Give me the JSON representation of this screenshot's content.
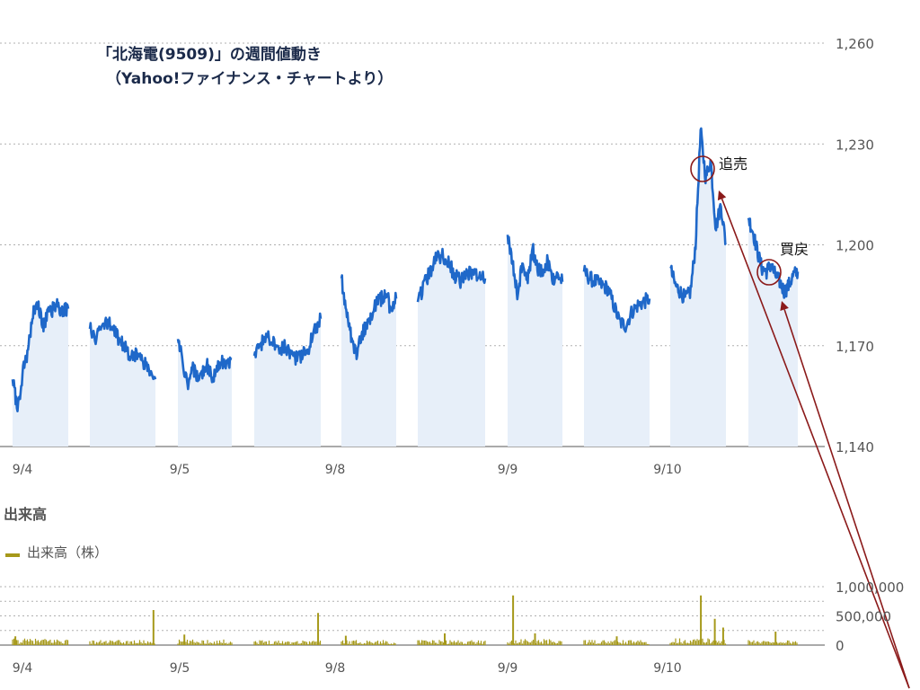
{
  "chart_data": [
    {
      "type": "line",
      "title": "「北海電(9509)」の週間値動き",
      "subtitle": "（Yahoo!ファイナンス・チャートより）",
      "categories": [
        "9/4",
        "9/5",
        "9/8",
        "9/9",
        "9/10"
      ],
      "ylim": [
        1140,
        1260
      ],
      "yticks": [
        "1,260",
        "1,230",
        "1,200",
        "1,170",
        "1,140"
      ],
      "ytick_values": [
        1260,
        1230,
        1200,
        1170,
        1140
      ],
      "grid": true,
      "colors": {
        "line": "#1f68c9",
        "fill": "#e7eff9",
        "annotation": "#8b1a1a"
      },
      "sessions": [
        {
          "day": "9/4",
          "prices": [
            1160,
            1151,
            1162,
            1168,
            1180,
            1183,
            1176,
            1179,
            1181,
            1182,
            1180,
            1181
          ]
        },
        {
          "day": "9/4",
          "prices": [
            1175,
            1172,
            1176,
            1177,
            1174,
            1172,
            1169,
            1167,
            1168,
            1165,
            1162,
            1160
          ]
        },
        {
          "day": "9/5",
          "prices": [
            1172,
            1166,
            1157,
            1163,
            1161,
            1162,
            1164,
            1160,
            1163,
            1165,
            1164,
            1166
          ]
        },
        {
          "day": "9/5",
          "prices": [
            1167,
            1170,
            1173,
            1172,
            1169,
            1170,
            1168,
            1166,
            1167,
            1169,
            1175,
            1178
          ]
        },
        {
          "day": "9/8",
          "prices": [
            1190,
            1180,
            1172,
            1167,
            1173,
            1176,
            1179,
            1183,
            1184,
            1186,
            1180,
            1184
          ]
        },
        {
          "day": "9/8",
          "prices": [
            1183,
            1188,
            1192,
            1196,
            1197,
            1195,
            1191,
            1189,
            1191,
            1192,
            1191,
            1190
          ]
        },
        {
          "day": "9/9",
          "prices": [
            1203,
            1194,
            1185,
            1196,
            1189,
            1199,
            1193,
            1192,
            1195,
            1190,
            1191,
            1189
          ]
        },
        {
          "day": "9/9",
          "prices": [
            1192,
            1190,
            1189,
            1188,
            1187,
            1182,
            1177,
            1176,
            1180,
            1182,
            1183,
            1184
          ]
        },
        {
          "day": "9/10",
          "prices": [
            1193,
            1188,
            1186,
            1184,
            1186,
            1200,
            1234,
            1220,
            1225,
            1205,
            1212,
            1200
          ]
        },
        {
          "day": "9/10",
          "prices": [
            1208,
            1204,
            1198,
            1193,
            1192,
            1194,
            1191,
            1189,
            1186,
            1188,
            1191,
            1192
          ]
        }
      ],
      "annotations": [
        {
          "label": "追売",
          "price": 1222
        },
        {
          "label": "買戻",
          "price": 1192
        }
      ]
    },
    {
      "type": "bar",
      "title": "出来高",
      "legend": "出来高（株）",
      "legend_color": "#a6991a",
      "categories": [
        "9/4",
        "9/5",
        "9/8",
        "9/9",
        "9/10"
      ],
      "ylim": [
        0,
        1000000
      ],
      "yticks": [
        "1,000,000",
        "500,000",
        "0"
      ],
      "ytick_values": [
        1000000,
        500000,
        0
      ],
      "grid": true,
      "sessions": [
        {
          "base": 70000,
          "spikes": [
            {
              "pos": 0.05,
              "v": 150000
            }
          ]
        },
        {
          "base": 55000,
          "spikes": [
            {
              "pos": 0.97,
              "v": 600000
            }
          ]
        },
        {
          "base": 60000,
          "spikes": [
            {
              "pos": 0.12,
              "v": 180000
            }
          ]
        },
        {
          "base": 55000,
          "spikes": [
            {
              "pos": 0.96,
              "v": 550000
            }
          ]
        },
        {
          "base": 55000,
          "spikes": [
            {
              "pos": 0.08,
              "v": 160000
            }
          ]
        },
        {
          "base": 55000,
          "spikes": [
            {
              "pos": 0.4,
              "v": 200000
            }
          ]
        },
        {
          "base": 65000,
          "spikes": [
            {
              "pos": 0.1,
              "v": 850000
            },
            {
              "pos": 0.5,
              "v": 200000
            }
          ]
        },
        {
          "base": 55000,
          "spikes": [
            {
              "pos": 0.5,
              "v": 150000
            }
          ]
        },
        {
          "base": 75000,
          "spikes": [
            {
              "pos": 0.55,
              "v": 850000
            },
            {
              "pos": 0.8,
              "v": 450000
            },
            {
              "pos": 0.95,
              "v": 300000
            }
          ]
        },
        {
          "base": 55000,
          "spikes": [
            {
              "pos": 0.55,
              "v": 230000
            }
          ]
        }
      ]
    }
  ]
}
